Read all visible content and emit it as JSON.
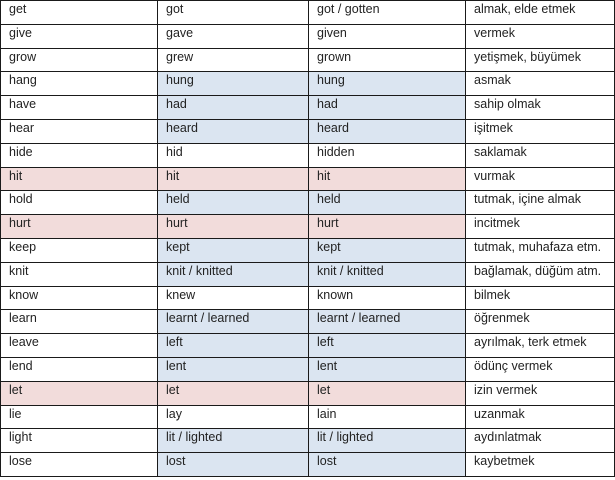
{
  "colors": {
    "irregular_blue": "#dbe5f1",
    "same_form_pink": "#f2dcdb",
    "regular_white": "#ffffff",
    "border": "#1a1a1a"
  },
  "verbs": [
    {
      "base": "get",
      "past": "got",
      "participle": "got / gotten",
      "meaning": "almak, elde etmek",
      "shade": [
        "white",
        "white",
        "white",
        "white"
      ]
    },
    {
      "base": "give",
      "past": "gave",
      "participle": "given",
      "meaning": "vermek",
      "shade": [
        "white",
        "white",
        "white",
        "white"
      ]
    },
    {
      "base": "grow",
      "past": "grew",
      "participle": "grown",
      "meaning": "yetişmek, büyümek",
      "shade": [
        "white",
        "white",
        "white",
        "white"
      ]
    },
    {
      "base": "hang",
      "past": "hung",
      "participle": "hung",
      "meaning": "asmak",
      "shade": [
        "white",
        "blue",
        "blue",
        "white"
      ]
    },
    {
      "base": "have",
      "past": "had",
      "participle": "had",
      "meaning": "sahip olmak",
      "shade": [
        "white",
        "blue",
        "blue",
        "white"
      ]
    },
    {
      "base": "hear",
      "past": "heard",
      "participle": "heard",
      "meaning": "işitmek",
      "shade": [
        "white",
        "blue",
        "blue",
        "white"
      ]
    },
    {
      "base": "hide",
      "past": "hid",
      "participle": "hidden",
      "meaning": "saklamak",
      "shade": [
        "white",
        "white",
        "white",
        "white"
      ]
    },
    {
      "base": "hit",
      "past": "hit",
      "participle": "hit",
      "meaning": "vurmak",
      "shade": [
        "pink",
        "pink",
        "pink",
        "white"
      ]
    },
    {
      "base": "hold",
      "past": "held",
      "participle": "held",
      "meaning": "tutmak, içine almak",
      "shade": [
        "white",
        "blue",
        "blue",
        "white"
      ]
    },
    {
      "base": "hurt",
      "past": "hurt",
      "participle": "hurt",
      "meaning": "incitmek",
      "shade": [
        "pink",
        "pink",
        "pink",
        "white"
      ]
    },
    {
      "base": "keep",
      "past": "kept",
      "participle": "kept",
      "meaning": "tutmak, muhafaza etm.",
      "shade": [
        "white",
        "blue",
        "blue",
        "white"
      ]
    },
    {
      "base": "knit",
      "past": "knit / knitted",
      "participle": "knit / knitted",
      "meaning": "bağlamak, düğüm atm.",
      "shade": [
        "white",
        "blue",
        "blue",
        "white"
      ]
    },
    {
      "base": "know",
      "past": "knew",
      "participle": "known",
      "meaning": "bilmek",
      "shade": [
        "white",
        "white",
        "white",
        "white"
      ]
    },
    {
      "base": "learn",
      "past": "learnt / learned",
      "participle": "learnt / learned",
      "meaning": "öğrenmek",
      "shade": [
        "white",
        "blue",
        "blue",
        "white"
      ]
    },
    {
      "base": "leave",
      "past": "left",
      "participle": "left",
      "meaning": "ayrılmak, terk etmek",
      "shade": [
        "white",
        "blue",
        "blue",
        "white"
      ]
    },
    {
      "base": "lend",
      "past": "lent",
      "participle": "lent",
      "meaning": "ödünç vermek",
      "shade": [
        "white",
        "blue",
        "blue",
        "white"
      ]
    },
    {
      "base": "let",
      "past": "let",
      "participle": "let",
      "meaning": "izin vermek",
      "shade": [
        "pink",
        "pink",
        "pink",
        "white"
      ]
    },
    {
      "base": "lie",
      "past": "lay",
      "participle": "lain",
      "meaning": "uzanmak",
      "shade": [
        "white",
        "white",
        "white",
        "white"
      ]
    },
    {
      "base": "light",
      "past": "lit / lighted",
      "participle": "lit / lighted",
      "meaning": "aydınlatmak",
      "shade": [
        "white",
        "blue",
        "blue",
        "white"
      ]
    },
    {
      "base": "lose",
      "past": "lost",
      "participle": "lost",
      "meaning": "kaybetmek",
      "shade": [
        "white",
        "blue",
        "blue",
        "white"
      ]
    }
  ]
}
